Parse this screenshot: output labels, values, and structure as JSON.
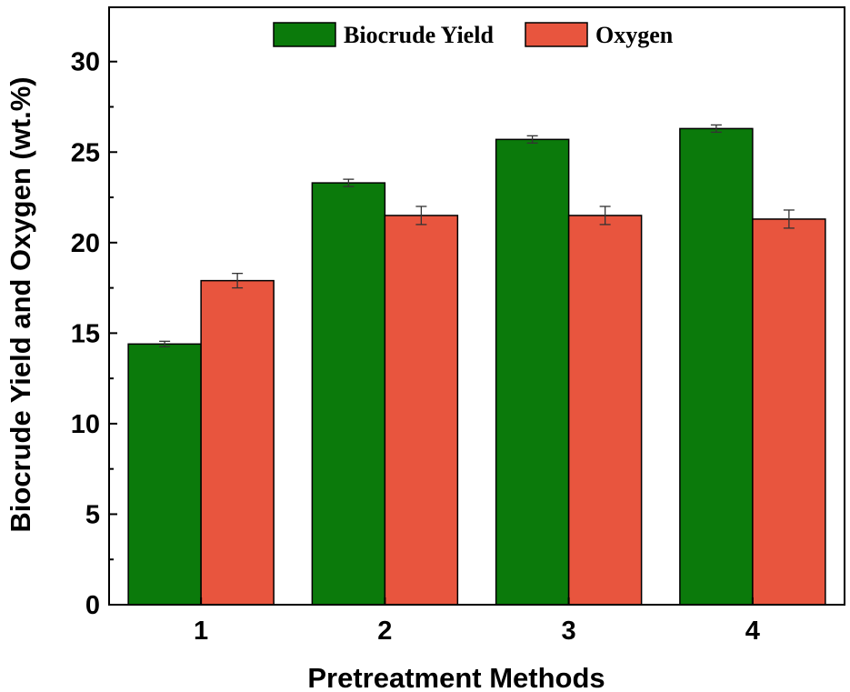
{
  "chart_data": {
    "type": "bar",
    "categories": [
      "1",
      "2",
      "3",
      "4"
    ],
    "series": [
      {
        "name": "Biocrude Yield",
        "color": "#0b7a0b",
        "values": [
          14.4,
          23.3,
          25.7,
          26.3
        ],
        "errors": [
          0.05,
          0.1,
          0.1,
          0.1
        ]
      },
      {
        "name": "Oxygen",
        "color": "#e8553e",
        "values": [
          17.9,
          21.5,
          21.5,
          21.3
        ],
        "errors": [
          0.3,
          0.4,
          0.4,
          0.4
        ]
      }
    ],
    "xlabel": "Pretreatment Methods",
    "ylabel": "Biocrude Yield and Oxygen (wt.%)",
    "ylim": [
      0,
      33
    ],
    "yticks": [
      "0",
      "5",
      "10",
      "15",
      "20",
      "25",
      "30"
    ],
    "legend_position": "top-center",
    "grid": false
  }
}
